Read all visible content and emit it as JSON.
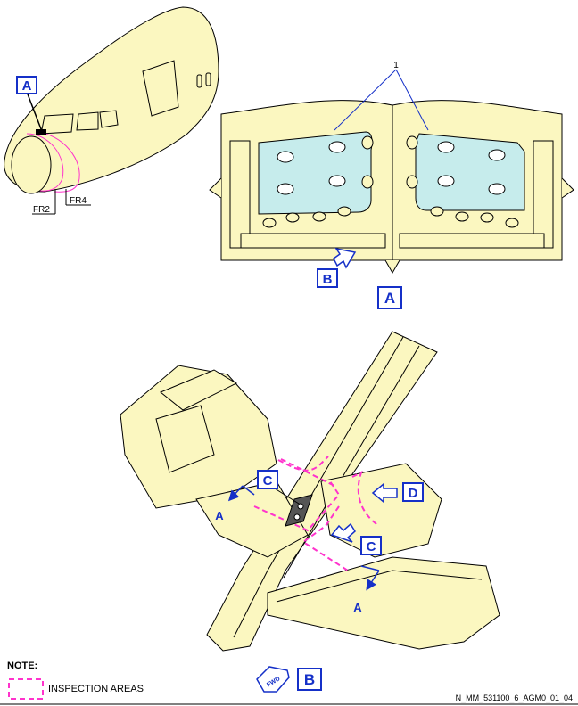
{
  "nose_view": {
    "callout": "A",
    "frame_labels": [
      "FR2",
      "FR4"
    ]
  },
  "view_a": {
    "item_number": "1",
    "view_label": "A",
    "arrow_callout": "B"
  },
  "view_b": {
    "callouts": {
      "c1": "C",
      "c2": "C",
      "d": "D"
    },
    "section_marks": [
      "A",
      "A"
    ],
    "fwd_label": "FWD",
    "view_label": "B"
  },
  "note": {
    "title": "NOTE:",
    "legend_text": "INSPECTION AREAS"
  },
  "reference": "N_MM_531100_6_AGM0_01_04",
  "colors": {
    "structure": "#fbf7c0",
    "panel": "#c6ecec",
    "inspection": "#ff33cc",
    "callout": "#1530c8"
  }
}
